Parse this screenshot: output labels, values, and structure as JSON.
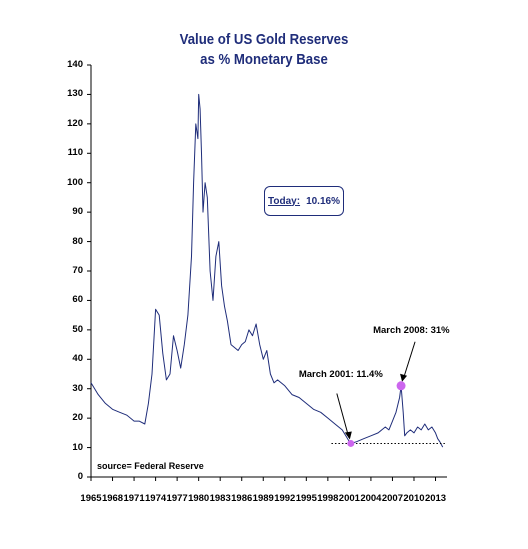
{
  "chart_data": {
    "type": "line",
    "title": "Value of US Gold Reserves",
    "subtitle": "as % Monetary Base",
    "xlabel": "",
    "ylabel": "",
    "xlim": [
      1965,
      2014.6
    ],
    "ylim": [
      0,
      140
    ],
    "y_ticks": [
      0,
      10,
      20,
      30,
      40,
      50,
      60,
      70,
      80,
      90,
      100,
      110,
      120,
      130,
      140
    ],
    "x_tick_labels": [
      "1965",
      "1968",
      "1971",
      "1974",
      "1977",
      "1980",
      "1983",
      "1986",
      "1989",
      "1992",
      "1995",
      "1998",
      "2001",
      "2004",
      "2007",
      "2010",
      "2013"
    ],
    "grid": false,
    "series": [
      {
        "name": "",
        "color": "#1f2d7a",
        "x": [
          1965,
          1966,
          1967,
          1968,
          1969,
          1970,
          1971,
          1971.7,
          1972.5,
          1973,
          1973.5,
          1974,
          1974.5,
          1975,
          1975.5,
          1976,
          1976.5,
          1977,
          1977.5,
          1978,
          1978.5,
          1979,
          1979.3,
          1979.6,
          1979.9,
          1980.0,
          1980.2,
          1980.4,
          1980.6,
          1980.9,
          1981.2,
          1981.6,
          1982,
          1982.4,
          1982.8,
          1983.2,
          1983.6,
          1984,
          1984.5,
          1985,
          1985.5,
          1986,
          1986.5,
          1987,
          1987.5,
          1988,
          1988.5,
          1989,
          1989.5,
          1990,
          1990.5,
          1991,
          1992,
          1993,
          1994,
          1995,
          1996,
          1997,
          1998,
          1999,
          2000,
          2000.5,
          2001,
          2001.2,
          2002,
          2003,
          2004,
          2005,
          2006,
          2006.5,
          2007,
          2007.5,
          2008,
          2008.2,
          2008.5,
          2008.7,
          2009,
          2009.5,
          2010,
          2010.5,
          2011,
          2011.5,
          2012,
          2012.5,
          2013,
          2013.3,
          2013.6,
          2014
        ],
        "y": [
          32,
          28,
          25,
          23,
          22,
          21,
          19,
          19,
          18,
          25,
          35,
          57,
          55,
          42,
          33,
          35,
          48,
          43,
          37,
          45,
          55,
          75,
          100,
          120,
          115,
          130,
          125,
          110,
          90,
          100,
          95,
          70,
          60,
          75,
          80,
          65,
          58,
          53,
          45,
          44,
          43,
          45,
          46,
          50,
          48,
          52,
          45,
          40,
          43,
          35,
          32,
          33,
          31,
          28,
          27,
          25,
          23,
          22,
          20,
          18,
          16,
          14,
          12,
          11.4,
          12,
          13,
          14,
          15,
          17,
          16,
          19,
          22,
          27,
          31,
          22,
          14,
          15,
          16,
          15,
          17,
          16,
          18,
          16,
          17,
          15,
          13,
          12,
          10.16
        ]
      }
    ],
    "annotations": [
      {
        "text": "March 2001:  11.4%",
        "x": 2001.2,
        "y": 11.4
      },
      {
        "text": "March 2008:  31%",
        "x": 2008.2,
        "y": 31
      }
    ],
    "baseline_value": 11.4,
    "highlight_color": "#cc66ee",
    "today_label": "Today:",
    "today_value": "10.16%",
    "source": "source= Federal Reserve"
  }
}
